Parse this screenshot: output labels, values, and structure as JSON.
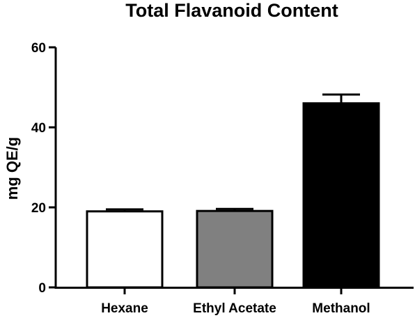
{
  "chart_data": {
    "type": "bar",
    "title": "Total Flavanoid Content",
    "xlabel": "",
    "ylabel": "mg QE/g",
    "ylim": [
      0,
      60
    ],
    "yticks": [
      0,
      20,
      40,
      60
    ],
    "categories": [
      "Hexane",
      "Ethyl Acetate",
      "Methanol"
    ],
    "values": [
      19.0,
      19.1,
      46.0
    ],
    "errors": [
      0.5,
      0.5,
      2.2
    ],
    "bar_colors": [
      "#ffffff",
      "#808080",
      "#000000"
    ],
    "edge_color": "#000000",
    "grid": false,
    "legend": "none"
  }
}
